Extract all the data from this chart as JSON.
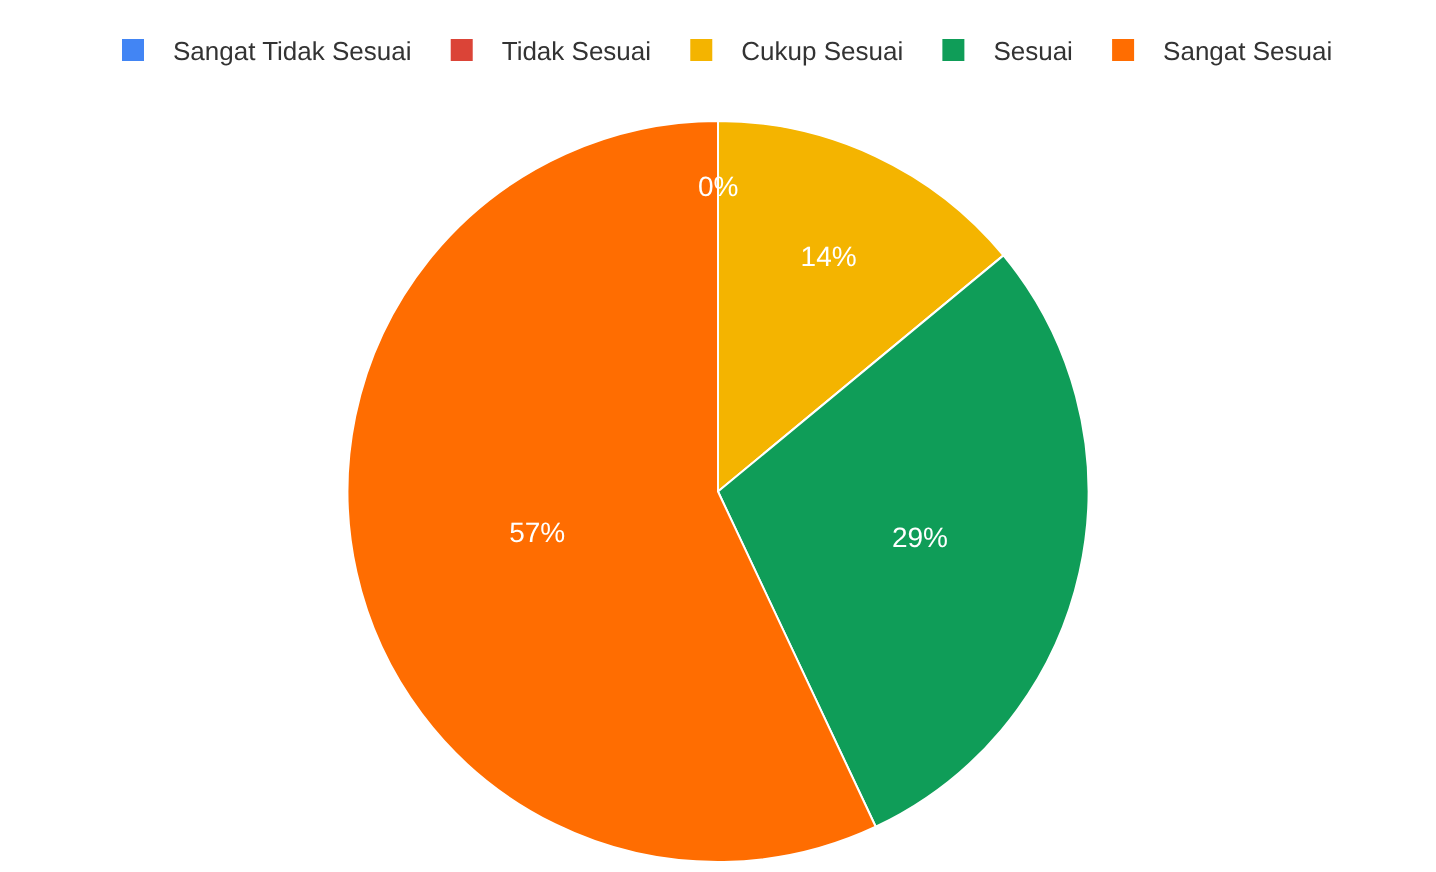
{
  "chart_data": {
    "type": "pie",
    "categories": [
      "Sangat Tidak Sesuai",
      "Tidak Sesuai",
      "Cukup Sesuai",
      "Sesuai",
      "Sangat Sesuai"
    ],
    "values": [
      0,
      0,
      14,
      29,
      57
    ],
    "colors": [
      "#4285f4",
      "#db4437",
      "#f4b400",
      "#0f9d58",
      "#ff6d01"
    ],
    "value_labels": [
      "0%",
      null,
      "14%",
      "29%",
      "57%"
    ],
    "legend": "top"
  }
}
